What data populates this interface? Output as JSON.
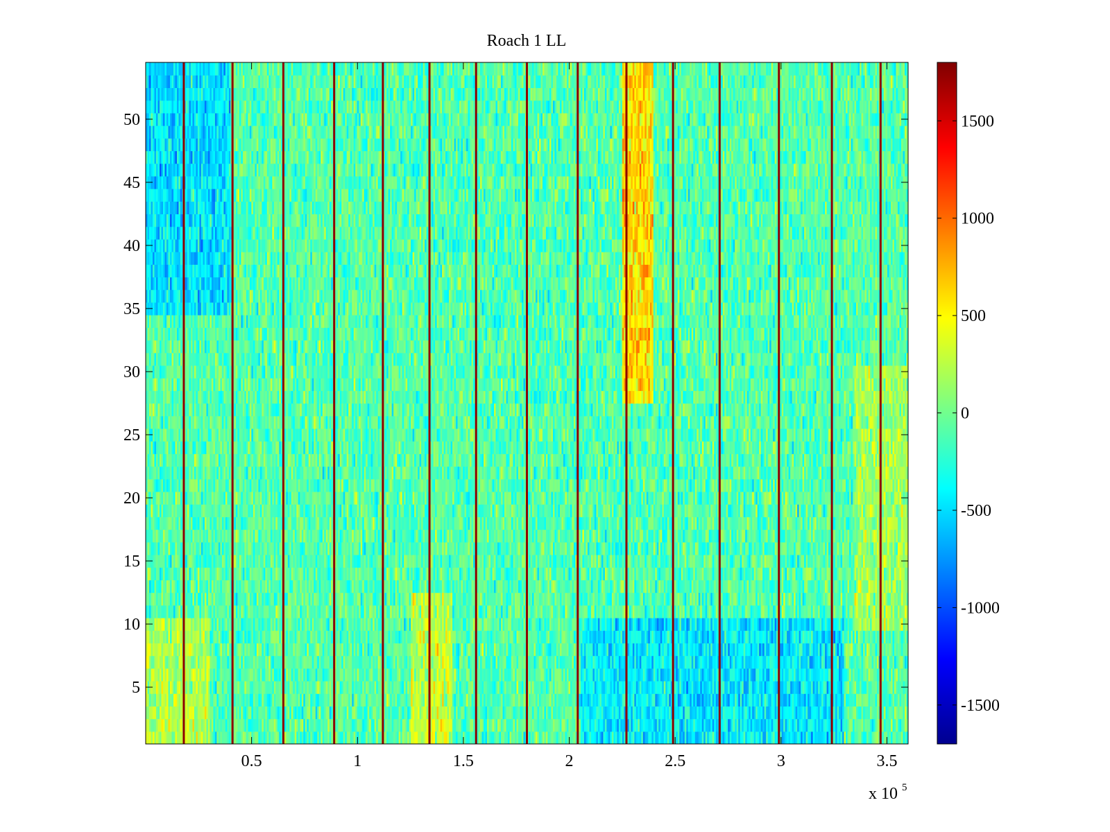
{
  "chart_data": {
    "type": "heatmap",
    "title": "Roach 1 LL",
    "xlabel": "",
    "ylabel": "",
    "x_range": [
      0,
      360000
    ],
    "y_range": [
      0.5,
      54.5
    ],
    "x_ticks": [
      {
        "value": 50000,
        "label": "0.5"
      },
      {
        "value": 100000,
        "label": "1"
      },
      {
        "value": 150000,
        "label": "1.5"
      },
      {
        "value": 200000,
        "label": "2"
      },
      {
        "value": 250000,
        "label": "2.5"
      },
      {
        "value": 300000,
        "label": "3"
      },
      {
        "value": 350000,
        "label": "3.5"
      }
    ],
    "x_exponent": {
      "base": "x 10",
      "power": "5"
    },
    "y_ticks": [
      {
        "value": 5,
        "label": "5"
      },
      {
        "value": 10,
        "label": "10"
      },
      {
        "value": 15,
        "label": "15"
      },
      {
        "value": 20,
        "label": "20"
      },
      {
        "value": 25,
        "label": "25"
      },
      {
        "value": 30,
        "label": "30"
      },
      {
        "value": 35,
        "label": "35"
      },
      {
        "value": 40,
        "label": "40"
      },
      {
        "value": 45,
        "label": "45"
      },
      {
        "value": 50,
        "label": "50"
      }
    ],
    "rows": 54,
    "colormap": "jet",
    "color_range": [
      -1700,
      1800
    ],
    "colorbar_ticks": [
      {
        "value": 1500,
        "label": "1500"
      },
      {
        "value": 1000,
        "label": "1000"
      },
      {
        "value": 500,
        "label": "500"
      },
      {
        "value": 0,
        "label": "0"
      },
      {
        "value": -500,
        "label": "-500"
      },
      {
        "value": -1000,
        "label": "-1000"
      },
      {
        "value": -1500,
        "label": "-1500"
      }
    ],
    "background_level": -100,
    "spike_columns_x": [
      18000,
      41000,
      65000,
      89000,
      112000,
      134000,
      156000,
      180000,
      204000,
      227000,
      249000,
      271000,
      299000,
      324000,
      347000
    ],
    "warm_bands": [
      {
        "x_start": 225000,
        "x_end": 240000,
        "y_start": 28,
        "y_end": 54.5,
        "level": 650
      },
      {
        "x_start": 125000,
        "x_end": 145000,
        "y_start": 0.5,
        "y_end": 12,
        "level": 300
      },
      {
        "x_start": 0,
        "x_end": 30000,
        "y_start": 0.5,
        "y_end": 10,
        "level": 250
      },
      {
        "x_start": 335000,
        "x_end": 360000,
        "y_start": 10,
        "y_end": 30,
        "level": 200
      }
    ],
    "cool_bands": [
      {
        "x_start": 0,
        "x_end": 40000,
        "y_start": 35,
        "y_end": 54.5,
        "level": -450
      },
      {
        "x_start": 205000,
        "x_end": 330000,
        "y_start": 0.5,
        "y_end": 10,
        "level": -400
      }
    ],
    "grid": false,
    "legend": "colorbar-right"
  }
}
